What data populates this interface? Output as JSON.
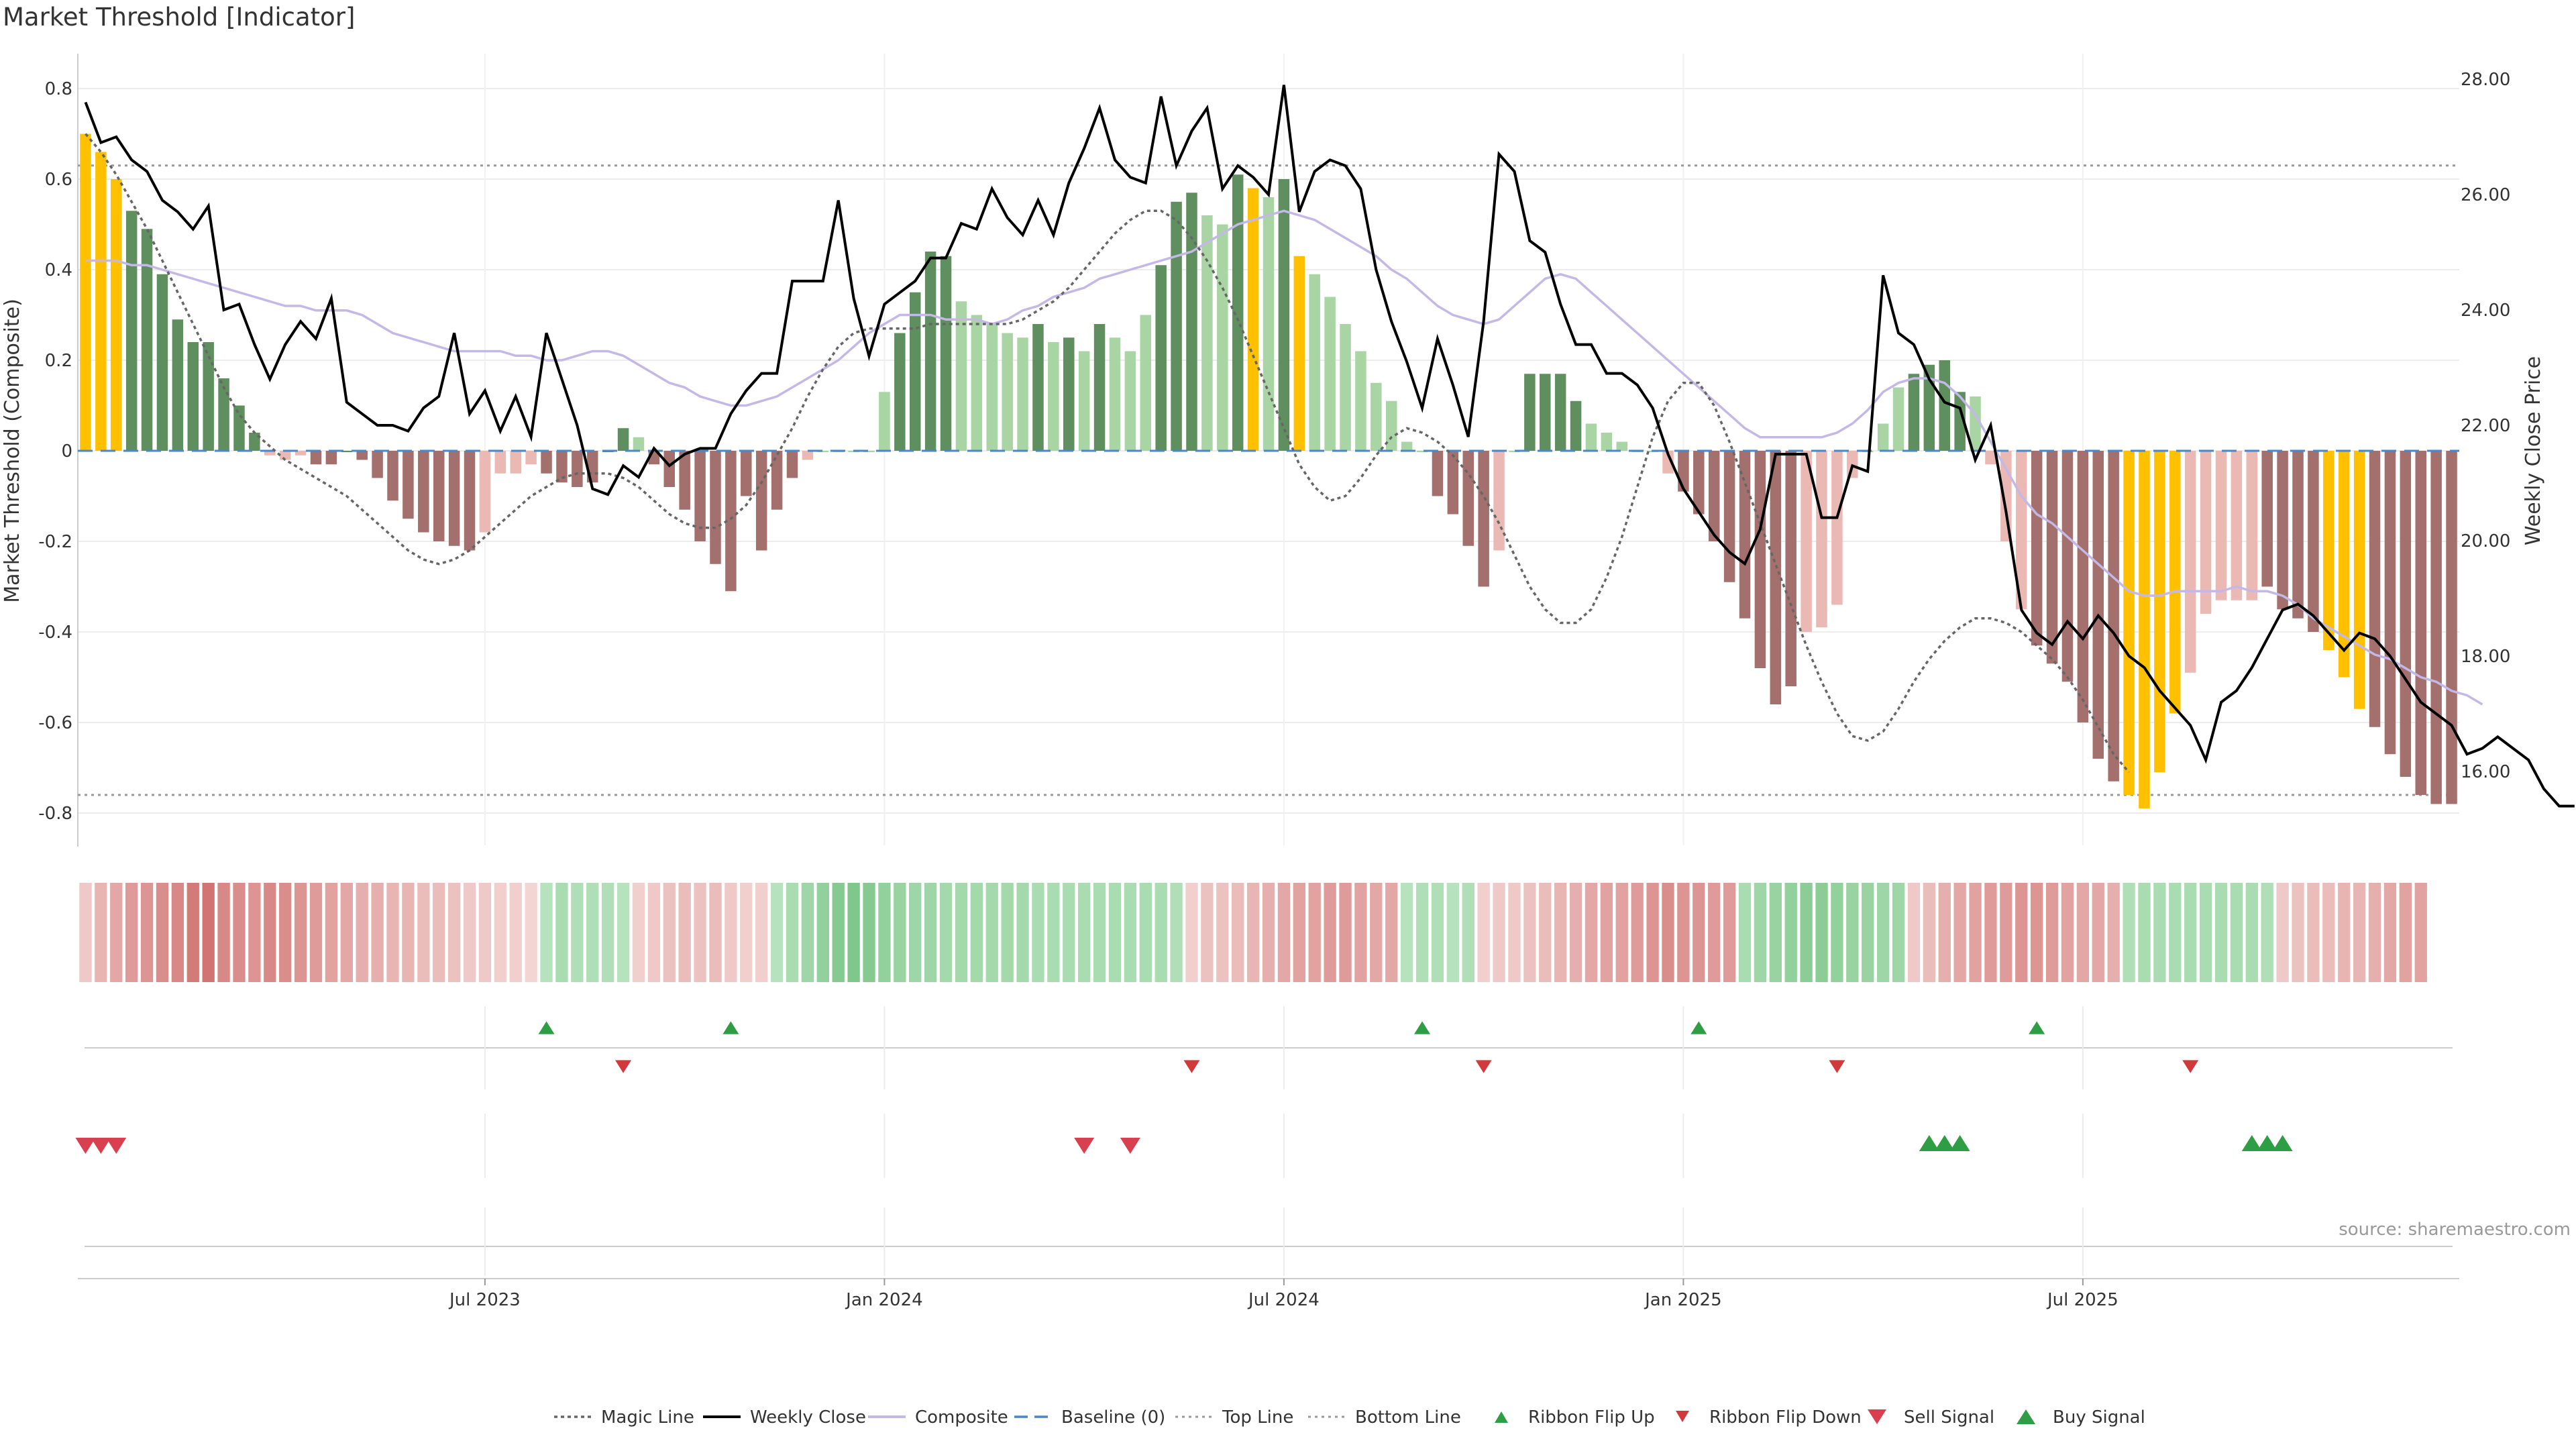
{
  "title": "Market Threshold [Indicator]",
  "source": "source: sharemaestro.com",
  "colors": {
    "positive_strong": "#5f8f5f",
    "positive_weak": "#a8d5a3",
    "negative_strong": "#a3706e",
    "negative_weak": "#eab9b4",
    "extreme": "#ffc000",
    "weekly_close": "#000000",
    "composite": "#c3b8e6",
    "magic_line": "#666666",
    "baseline": "#4a86c8",
    "ribbon_flip_up": "#2e9e44",
    "ribbon_flip_down": "#d03a3a",
    "sell_signal": "#d84050",
    "buy_signal": "#2e9e44"
  },
  "chart_data": {
    "type": "bar",
    "x_unit": "week",
    "x_start": "2023-01-15",
    "x_ticks": [
      {
        "week": 26,
        "label": "Jul 2023"
      },
      {
        "week": 52,
        "label": "Jan 2024"
      },
      {
        "week": 78,
        "label": "Jul 2024"
      },
      {
        "week": 104,
        "label": "Jan 2025"
      },
      {
        "week": 130,
        "label": "Jul 2025"
      }
    ],
    "ylabel": "Market Threshold (Composite)",
    "ylim": [
      -0.85,
      0.85
    ],
    "yticks": [
      0.8,
      0.6,
      0.4,
      0.2,
      0,
      -0.2,
      -0.4,
      -0.6,
      -0.8
    ],
    "y2label": "Weekly Close Price",
    "y2lim": [
      15.0,
      28.7
    ],
    "y2ticks": [
      "16.00",
      "18.00",
      "20.00",
      "22.00",
      "24.00",
      "26.00",
      "28.00"
    ],
    "top_line": 0.63,
    "bottom_line": -0.76,
    "grid": true,
    "legend": "bottom-center",
    "series": [
      {
        "name": "Composite",
        "kind": "bar",
        "values": [
          0.7,
          0.66,
          0.6,
          0.53,
          0.49,
          0.39,
          0.29,
          0.24,
          0.24,
          0.16,
          0.1,
          0.04,
          -0.01,
          -0.02,
          -0.01,
          -0.03,
          -0.03,
          0.0,
          -0.02,
          -0.06,
          -0.11,
          -0.15,
          -0.18,
          -0.2,
          -0.21,
          -0.22,
          -0.18,
          -0.05,
          -0.05,
          -0.03,
          -0.05,
          -0.07,
          -0.08,
          -0.07,
          0.0,
          0.05,
          0.03,
          -0.03,
          -0.08,
          -0.13,
          -0.2,
          -0.25,
          -0.31,
          -0.1,
          -0.22,
          -0.13,
          -0.06,
          -0.02,
          0.0,
          0.0,
          0.0,
          0.0,
          0.13,
          0.26,
          0.35,
          0.44,
          0.43,
          0.33,
          0.3,
          0.28,
          0.26,
          0.25,
          0.28,
          0.24,
          0.25,
          0.22,
          0.28,
          0.25,
          0.22,
          0.3,
          0.41,
          0.55,
          0.57,
          0.52,
          0.5,
          0.61,
          0.58,
          0.56,
          0.6,
          0.43,
          0.39,
          0.34,
          0.28,
          0.22,
          0.15,
          0.11,
          0.02,
          0.0,
          -0.1,
          -0.14,
          -0.21,
          -0.3,
          -0.22,
          0.0,
          0.17,
          0.17,
          0.17,
          0.11,
          0.06,
          0.04,
          0.02,
          0.0,
          0.0,
          -0.05,
          -0.09,
          -0.14,
          -0.2,
          -0.29,
          -0.37,
          -0.48,
          -0.56,
          -0.52,
          -0.4,
          -0.39,
          -0.34,
          -0.06,
          0.0,
          0.06,
          0.14,
          0.17,
          0.19,
          0.2,
          0.13,
          0.12,
          -0.03,
          -0.2,
          -0.35,
          -0.43,
          -0.47,
          -0.51,
          -0.6,
          -0.68,
          -0.73,
          -0.76,
          -0.79,
          -0.71,
          -0.58,
          -0.49,
          -0.36,
          -0.33,
          -0.33,
          -0.33,
          -0.3,
          -0.35,
          -0.37,
          -0.4,
          -0.44,
          -0.5,
          -0.57,
          -0.61,
          -0.67,
          -0.72,
          -0.76,
          -0.78,
          -0.78
        ],
        "weak": [
          12,
          13,
          14,
          26,
          27,
          28,
          29,
          36,
          47,
          48,
          49,
          50,
          51,
          52,
          57,
          58,
          59,
          60,
          61,
          63,
          65,
          67,
          68,
          69,
          73,
          74,
          76,
          77,
          79,
          80,
          81,
          82,
          83,
          84,
          85,
          86,
          87,
          92,
          93,
          98,
          99,
          100,
          101,
          102,
          103,
          112,
          113,
          114,
          115,
          116,
          117,
          118,
          123,
          124,
          125,
          126,
          136,
          137,
          138,
          139,
          140,
          141
        ],
        "extreme": [
          0,
          1,
          2,
          76,
          79,
          133,
          134,
          135,
          136,
          146,
          147,
          148
        ]
      },
      {
        "name": "Weekly Close",
        "kind": "line",
        "axis": "right",
        "values": [
          27.6,
          26.9,
          27.0,
          26.6,
          26.4,
          25.9,
          25.7,
          25.4,
          25.8,
          24.0,
          24.1,
          23.4,
          22.8,
          23.4,
          23.8,
          23.5,
          24.2,
          22.4,
          22.2,
          22.0,
          22.0,
          21.9,
          22.3,
          22.5,
          23.6,
          22.2,
          22.6,
          21.9,
          22.5,
          21.8,
          23.6,
          22.8,
          22.0,
          20.9,
          20.8,
          21.3,
          21.1,
          21.6,
          21.3,
          21.5,
          21.6,
          21.6,
          22.2,
          22.6,
          22.9,
          22.9,
          24.5,
          24.5,
          24.5,
          25.9,
          24.2,
          23.2,
          24.1,
          24.3,
          24.5,
          24.9,
          24.9,
          25.5,
          25.4,
          26.1,
          25.6,
          25.3,
          25.9,
          25.3,
          26.2,
          26.8,
          27.5,
          26.6,
          26.3,
          26.2,
          27.7,
          26.5,
          27.1,
          27.5,
          26.1,
          26.5,
          26.3,
          26.0,
          27.9,
          25.7,
          26.4,
          26.6,
          26.5,
          26.1,
          24.7,
          23.8,
          23.1,
          22.3,
          23.5,
          22.7,
          21.8,
          23.8,
          26.7,
          26.4,
          25.2,
          25.0,
          24.1,
          23.4,
          23.4,
          22.9,
          22.9,
          22.7,
          22.3,
          21.5,
          20.9,
          20.5,
          20.1,
          19.8,
          19.6,
          20.2,
          21.5,
          21.5,
          21.5,
          20.4,
          20.4,
          21.3,
          21.2,
          24.6,
          23.6,
          23.4,
          22.8,
          22.4,
          22.3,
          21.4,
          22.0,
          20.5,
          18.8,
          18.4,
          18.2,
          18.6,
          18.3,
          18.7,
          18.4,
          18.0,
          17.8,
          17.4,
          17.1,
          16.8,
          16.2,
          17.2,
          17.4,
          17.8,
          18.3,
          18.8,
          18.9,
          18.7,
          18.4,
          18.1,
          18.4,
          18.3,
          18.0,
          17.6,
          17.2,
          17.0,
          16.8,
          16.3,
          16.4,
          16.6,
          16.4,
          16.2,
          15.7,
          15.4,
          15.4
        ]
      },
      {
        "name": "Composite",
        "kind": "line",
        "values": [
          0.42,
          0.42,
          0.42,
          0.41,
          0.41,
          0.4,
          0.39,
          0.38,
          0.37,
          0.36,
          0.35,
          0.34,
          0.33,
          0.32,
          0.32,
          0.31,
          0.31,
          0.31,
          0.3,
          0.28,
          0.26,
          0.25,
          0.24,
          0.23,
          0.22,
          0.22,
          0.22,
          0.22,
          0.21,
          0.21,
          0.2,
          0.2,
          0.21,
          0.22,
          0.22,
          0.21,
          0.19,
          0.17,
          0.15,
          0.14,
          0.12,
          0.11,
          0.1,
          0.1,
          0.11,
          0.12,
          0.14,
          0.16,
          0.18,
          0.2,
          0.23,
          0.26,
          0.28,
          0.3,
          0.3,
          0.3,
          0.29,
          0.29,
          0.29,
          0.28,
          0.29,
          0.31,
          0.32,
          0.34,
          0.35,
          0.36,
          0.38,
          0.39,
          0.4,
          0.41,
          0.42,
          0.43,
          0.44,
          0.46,
          0.48,
          0.5,
          0.51,
          0.52,
          0.53,
          0.52,
          0.51,
          0.49,
          0.47,
          0.45,
          0.43,
          0.4,
          0.38,
          0.35,
          0.32,
          0.3,
          0.29,
          0.28,
          0.29,
          0.32,
          0.35,
          0.38,
          0.39,
          0.38,
          0.35,
          0.32,
          0.29,
          0.26,
          0.23,
          0.2,
          0.17,
          0.14,
          0.11,
          0.08,
          0.05,
          0.03,
          0.03,
          0.03,
          0.03,
          0.03,
          0.04,
          0.06,
          0.09,
          0.13,
          0.15,
          0.16,
          0.16,
          0.15,
          0.12,
          0.08,
          0.02,
          -0.04,
          -0.1,
          -0.14,
          -0.16,
          -0.19,
          -0.22,
          -0.25,
          -0.28,
          -0.31,
          -0.32,
          -0.32,
          -0.31,
          -0.31,
          -0.31,
          -0.31,
          -0.3,
          -0.31,
          -0.31,
          -0.32,
          -0.34,
          -0.37,
          -0.39,
          -0.41,
          -0.43,
          -0.45,
          -0.46,
          -0.48,
          -0.5,
          -0.51,
          -0.53,
          -0.54,
          -0.56
        ]
      },
      {
        "name": "Magic Line",
        "kind": "line",
        "values": [
          0.7,
          0.66,
          0.61,
          0.55,
          0.49,
          0.42,
          0.35,
          0.28,
          0.21,
          0.14,
          0.08,
          0.04,
          0.01,
          -0.02,
          -0.04,
          -0.06,
          -0.08,
          -0.1,
          -0.13,
          -0.16,
          -0.19,
          -0.22,
          -0.24,
          -0.25,
          -0.24,
          -0.22,
          -0.19,
          -0.16,
          -0.13,
          -0.1,
          -0.08,
          -0.06,
          -0.05,
          -0.05,
          -0.05,
          -0.06,
          -0.08,
          -0.11,
          -0.14,
          -0.16,
          -0.17,
          -0.17,
          -0.15,
          -0.12,
          -0.07,
          -0.01,
          0.05,
          0.12,
          0.18,
          0.23,
          0.26,
          0.27,
          0.27,
          0.27,
          0.27,
          0.28,
          0.28,
          0.28,
          0.28,
          0.28,
          0.28,
          0.29,
          0.31,
          0.33,
          0.36,
          0.4,
          0.44,
          0.48,
          0.51,
          0.53,
          0.53,
          0.51,
          0.47,
          0.42,
          0.36,
          0.29,
          0.21,
          0.13,
          0.05,
          -0.03,
          -0.08,
          -0.11,
          -0.1,
          -0.06,
          -0.01,
          0.03,
          0.05,
          0.04,
          0.02,
          -0.01,
          -0.05,
          -0.1,
          -0.16,
          -0.23,
          -0.3,
          -0.35,
          -0.38,
          -0.38,
          -0.35,
          -0.28,
          -0.19,
          -0.08,
          0.03,
          0.11,
          0.15,
          0.15,
          0.1,
          0.02,
          -0.07,
          -0.16,
          -0.25,
          -0.34,
          -0.43,
          -0.51,
          -0.58,
          -0.63,
          -0.64,
          -0.62,
          -0.57,
          -0.51,
          -0.46,
          -0.42,
          -0.39,
          -0.37,
          -0.37,
          -0.38,
          -0.4,
          -0.43,
          -0.46,
          -0.5,
          -0.55,
          -0.61,
          -0.67,
          -0.71
        ]
      }
    ],
    "ribbon": [
      -0.15,
      -0.3,
      -0.4,
      -0.5,
      -0.55,
      -0.6,
      -0.65,
      -0.75,
      -0.8,
      -0.65,
      -0.6,
      -0.55,
      -0.65,
      -0.6,
      -0.55,
      -0.5,
      -0.45,
      -0.4,
      -0.35,
      -0.35,
      -0.3,
      -0.3,
      -0.25,
      -0.25,
      -0.2,
      -0.15,
      -0.15,
      -0.1,
      -0.1,
      -0.05,
      0.15,
      0.25,
      0.2,
      0.2,
      0.2,
      0.15,
      -0.1,
      -0.15,
      -0.2,
      -0.25,
      -0.2,
      -0.25,
      -0.15,
      -0.1,
      -0.1,
      0.15,
      0.25,
      0.35,
      0.45,
      0.55,
      0.6,
      0.55,
      0.45,
      0.4,
      0.35,
      0.35,
      0.3,
      0.3,
      0.3,
      0.3,
      0.3,
      0.3,
      0.25,
      0.25,
      0.25,
      0.25,
      0.25,
      0.25,
      0.25,
      0.25,
      0.25,
      0.2,
      -0.1,
      -0.2,
      -0.2,
      -0.25,
      -0.3,
      -0.35,
      -0.4,
      -0.45,
      -0.45,
      -0.5,
      -0.5,
      -0.45,
      -0.4,
      -0.4,
      0.15,
      0.2,
      0.2,
      0.15,
      0.2,
      -0.1,
      -0.15,
      -0.15,
      -0.2,
      -0.25,
      -0.3,
      -0.35,
      -0.4,
      -0.45,
      -0.45,
      -0.5,
      -0.55,
      -0.6,
      -0.55,
      -0.55,
      -0.5,
      -0.5,
      0.25,
      0.35,
      0.4,
      0.45,
      0.5,
      0.5,
      0.45,
      0.4,
      0.4,
      0.35,
      0.35,
      -0.15,
      -0.25,
      -0.35,
      -0.4,
      -0.45,
      -0.5,
      -0.5,
      -0.55,
      -0.55,
      -0.5,
      -0.45,
      -0.4,
      -0.4,
      -0.35,
      0.2,
      0.25,
      0.25,
      0.25,
      0.25,
      0.25,
      0.25,
      0.25,
      0.25,
      0.2,
      -0.15,
      -0.2,
      -0.25,
      -0.25,
      -0.3,
      -0.3,
      -0.35,
      -0.4,
      -0.45,
      -0.45
    ],
    "ribbon_flip_up": [
      30,
      42,
      87,
      105,
      127
    ],
    "ribbon_flip_down": [
      35,
      72,
      91,
      114,
      137
    ],
    "sell_signal": [
      0,
      1,
      2,
      65,
      68
    ],
    "buy_signal": [
      120,
      121,
      122,
      141,
      142,
      143
    ],
    "legend_entries": [
      {
        "label": "Magic Line",
        "marker": "dotted"
      },
      {
        "label": "Weekly Close",
        "marker": "solid-black"
      },
      {
        "label": "Composite",
        "marker": "solid-lavender"
      },
      {
        "label": "Baseline (0)",
        "marker": "dashed-blue"
      },
      {
        "label": "Top Line",
        "marker": "dotted-light"
      },
      {
        "label": "Bottom Line",
        "marker": "dotted-light"
      },
      {
        "label": "Ribbon Flip Up",
        "marker": "triangle-up-green"
      },
      {
        "label": "Ribbon Flip Down",
        "marker": "triangle-down-red"
      },
      {
        "label": "Sell Signal",
        "marker": "triangle-down-red-large"
      },
      {
        "label": "Buy Signal",
        "marker": "triangle-up-green-large"
      }
    ]
  }
}
